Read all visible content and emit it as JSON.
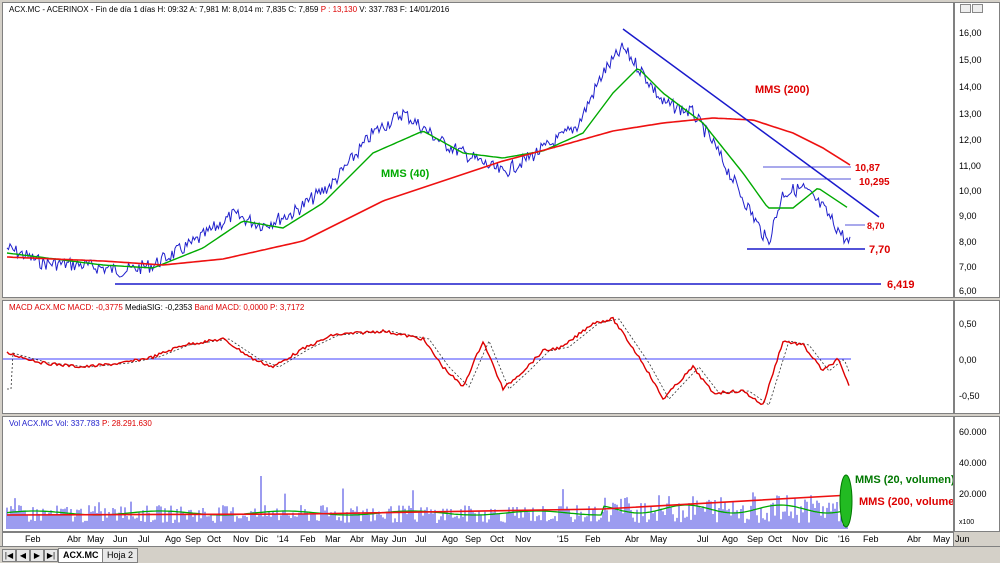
{
  "price_panel": {
    "header": "ACX.MC - ACERINOX - Fin de día 1 días  H: 09:32  A: 7,981  M: 8,014  m: 7,835  C: 7,859",
    "header_p": "P : 13,130",
    "header_rest": "V: 337.783  F: 14/01/2016",
    "y_labels": [
      "16,00",
      "15,00",
      "14,00",
      "13,00",
      "12,00",
      "11,00",
      "10,00",
      "9,00",
      "8,00",
      "7,00",
      "6,00"
    ],
    "annotations": {
      "mms200": "MMS (200)",
      "mms40": "MMS (40)",
      "l1087": "10,87",
      "l10295": "10,295",
      "l870": "8,70",
      "l770": "7,70",
      "l6419": "6,419"
    }
  },
  "macd_panel": {
    "header_a": "MACD  ACX.MC  MACD: -0,3775",
    "header_b": "MediaSIG: -0,2353",
    "header_c": "Band  MACD: 0,0000  P: 3,7172",
    "y_labels": [
      "0,50",
      "0,00",
      "-0,50"
    ]
  },
  "volume_panel": {
    "header_a": "Vol  ACX.MC  Vol: 337.783",
    "header_b": "P: 28.291.630",
    "y_labels": [
      "60.000",
      "40.000",
      "20.000"
    ],
    "y_unit": "x100",
    "mms20": "MMS (20, volumen)",
    "mms200": "MMS (200, volumen"
  },
  "x_labels": [
    "Feb",
    "Abr",
    "May",
    "Jun",
    "Jul",
    "Ago",
    "Sep",
    "Oct",
    "Nov",
    "Dic",
    "'14",
    "Feb",
    "Mar",
    "Abr",
    "May",
    "Jun",
    "Jul",
    "Ago",
    "Sep",
    "Oct",
    "Nov",
    "'15",
    "Feb",
    "Abr",
    "May",
    "Jul",
    "Ago",
    "Sep",
    "Oct",
    "Nov",
    "Dic",
    "'16",
    "Feb",
    "Abr",
    "May",
    "Jun"
  ],
  "tabs": [
    "ACX.MC",
    "Hoja 2"
  ],
  "nav_buttons": [
    "|◀",
    "◀",
    "▶",
    "▶|"
  ],
  "colors": {
    "price": "#2020cc",
    "mms40": "#00aa00",
    "mms200": "#ee1111",
    "level": "#1a1acc",
    "label": "#dd0000",
    "macd": "#dd0000"
  }
}
